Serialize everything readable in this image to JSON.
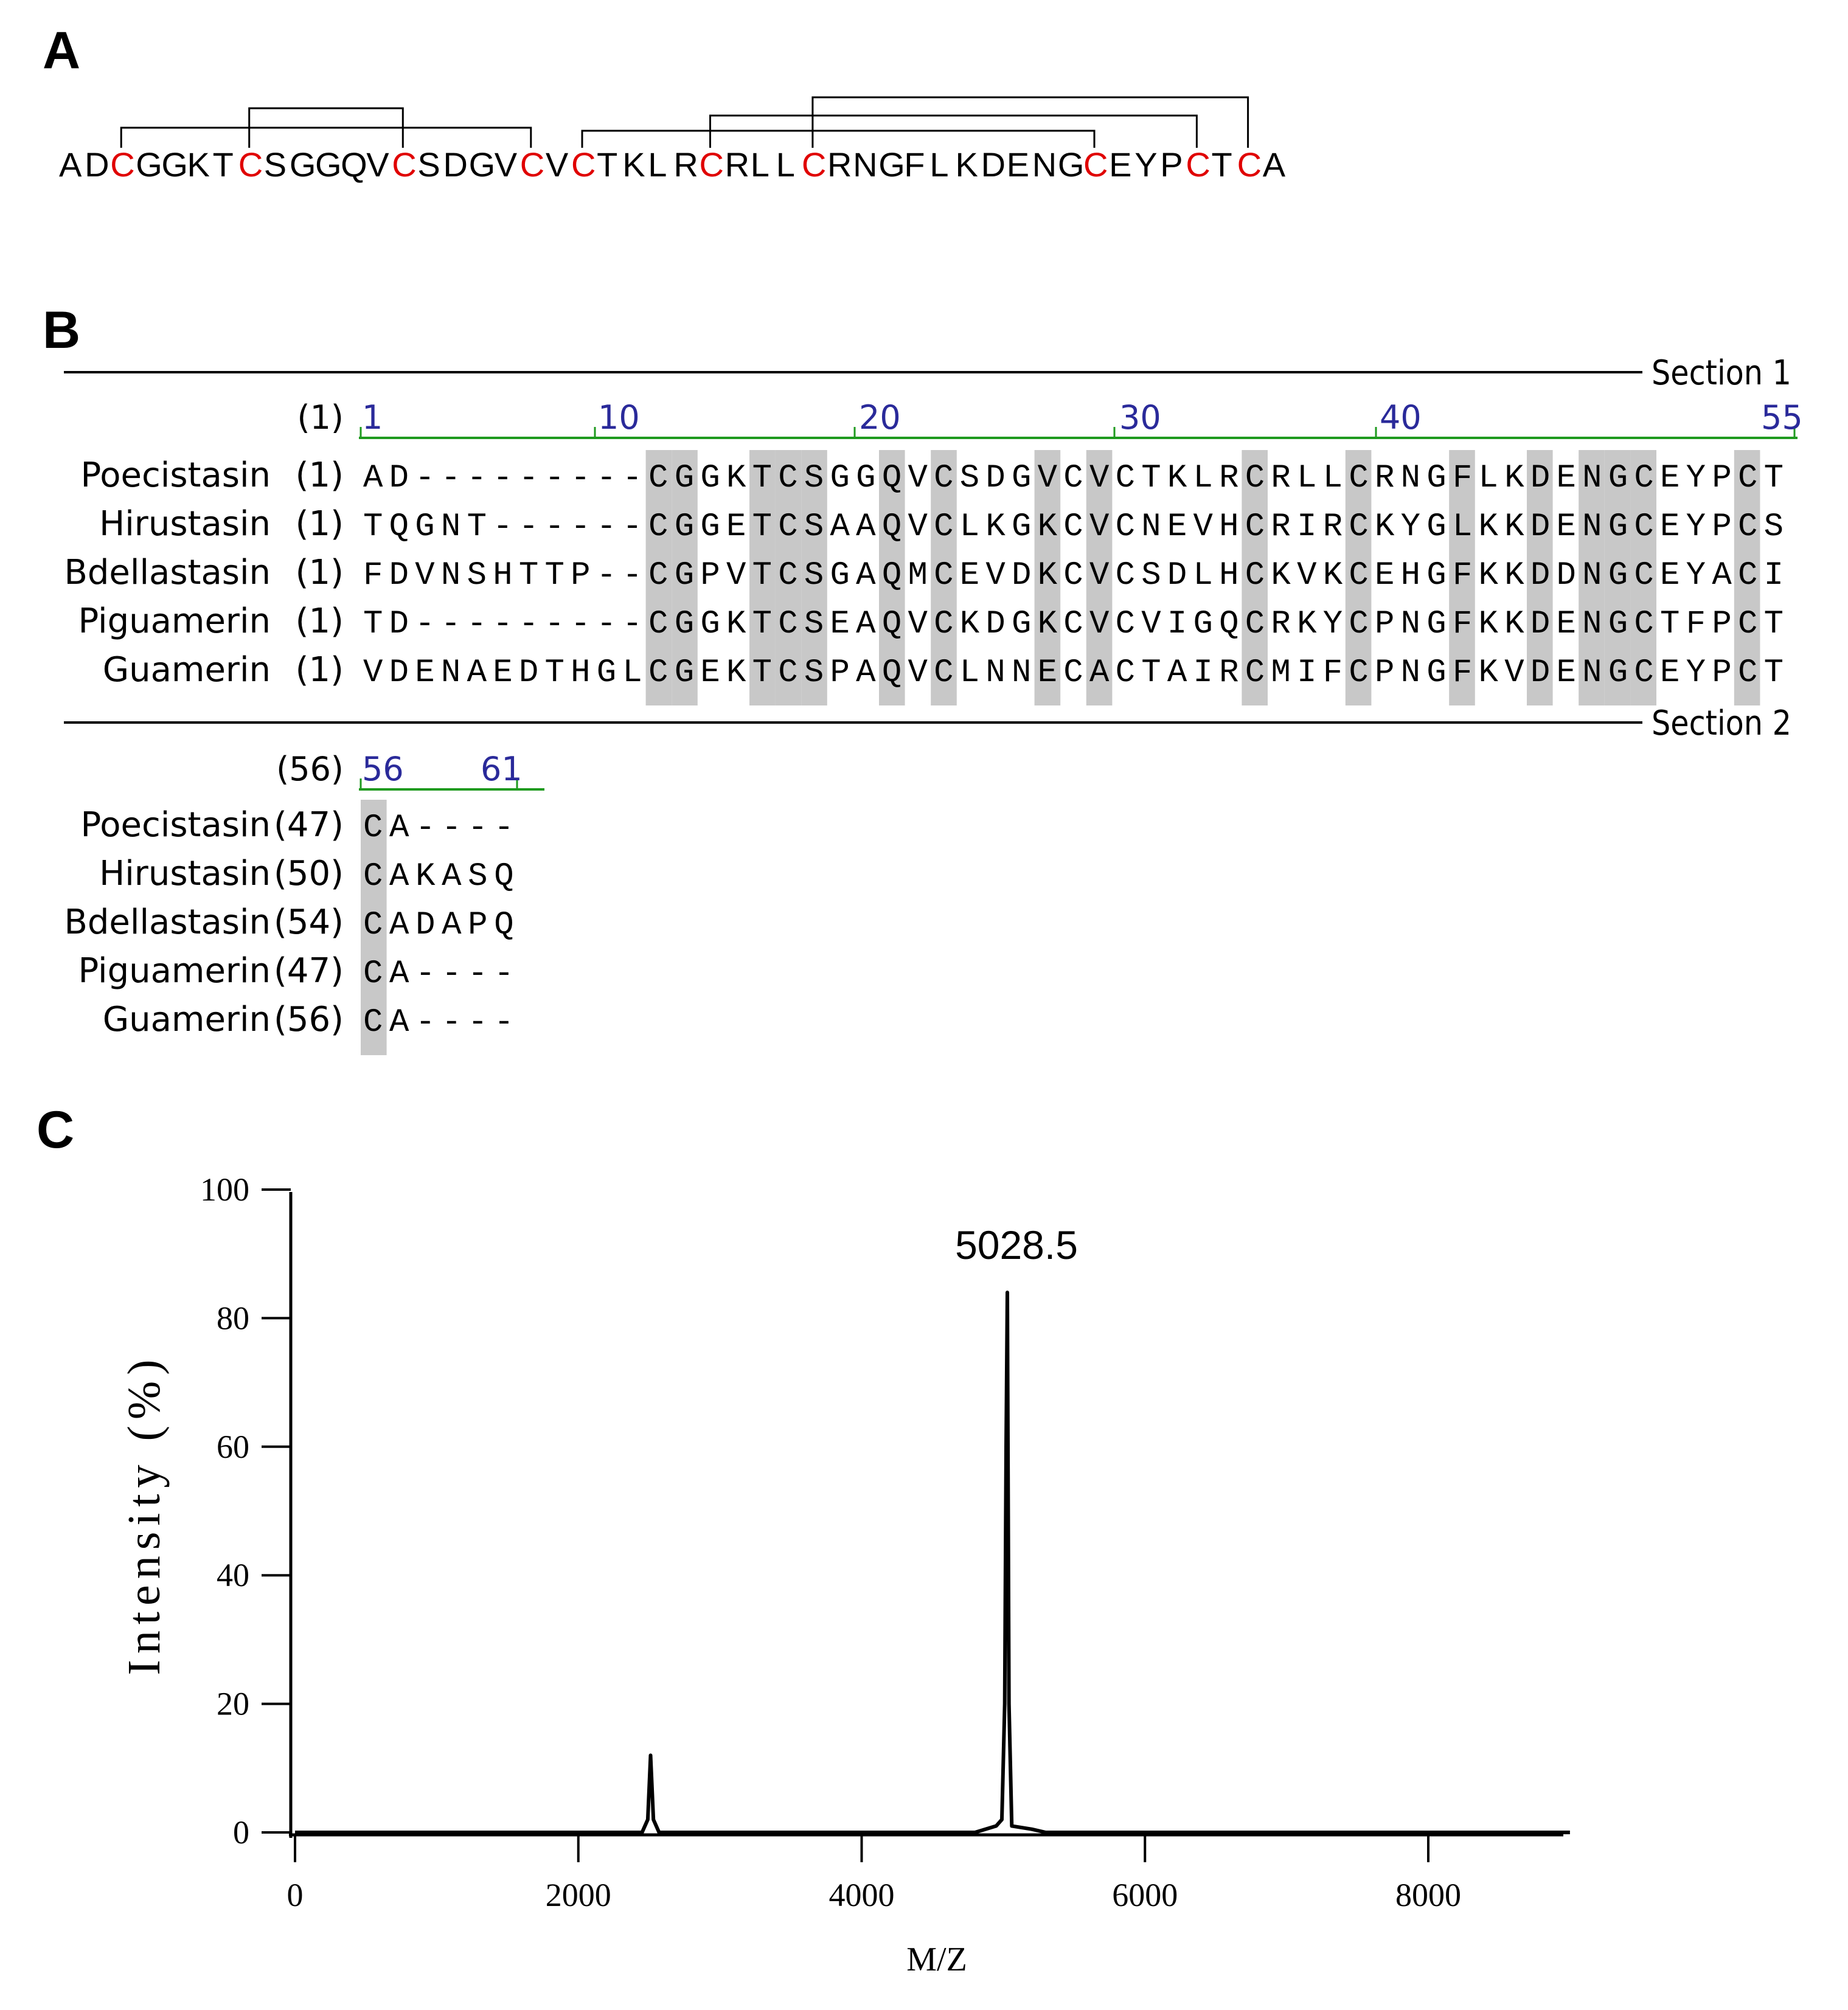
{
  "panels": {
    "A": "A",
    "B": "B",
    "C": "C"
  },
  "panel_a": {
    "sequence": "ADCGGKTCSGGQVCSDGVCVCTKLRCRLLCRNGFLKDENGCEYPCTCA",
    "highlight_residue": "C",
    "highlight_color": "#e00000",
    "disulfide_pairs": [
      [
        1,
        4
      ],
      [
        2,
        3
      ],
      [
        5,
        8
      ],
      [
        6,
        9
      ],
      [
        7,
        10
      ]
    ]
  },
  "panel_b": {
    "section1": {
      "label": "Section 1",
      "start_label": "(1)",
      "ruler": [
        "1",
        "10",
        "20",
        "30",
        "40",
        "55"
      ],
      "rows": [
        {
          "name": "Poecistasin",
          "pos": "(1)",
          "seq": "AD---------CGGKTCSGGQVCSDGVCVCTKLRCRLLCRNGFLKDENGCEYPCT"
        },
        {
          "name": "Hirustasin",
          "pos": "(1)",
          "seq": "TQGNT------CGGETCSAAQVCLKGKCVCNEVHCRIRCKYGLKKDENGCEYPCS"
        },
        {
          "name": "Bdellastasin",
          "pos": "(1)",
          "seq": "FDVNSHTTP--CGPVTCSGAQMCEVDKCVCSDLHCKVKCEHGFKKDDNGCEYACI"
        },
        {
          "name": "Piguamerin",
          "pos": "(1)",
          "seq": "TD---------CGGKTCSEAQVCKDGKCVCVIGQCRKYCPNGFKKDENGCTFPCT"
        },
        {
          "name": "Guamerin",
          "pos": "(1)",
          "seq": "VDENAEDTHGLCGEKTCSPAQVCLNNECACTAIRCMIFCPNGFKVDENGCEYPCT"
        }
      ],
      "shaded_columns": [
        12,
        13,
        16,
        17,
        18,
        21,
        23,
        27,
        29,
        35,
        39,
        43,
        46,
        48,
        49,
        50,
        54
      ]
    },
    "section2": {
      "label": "Section 2",
      "start_label": "(56)",
      "ruler": [
        "56",
        "61"
      ],
      "rows": [
        {
          "name": "Poecistasin",
          "pos": "(47)",
          "seq": "CA----"
        },
        {
          "name": "Hirustasin",
          "pos": "(50)",
          "seq": "CAKASQ"
        },
        {
          "name": "Bdellastasin",
          "pos": "(54)",
          "seq": "CADAPQ"
        },
        {
          "name": "Piguamerin",
          "pos": "(47)",
          "seq": "CA----"
        },
        {
          "name": "Guamerin",
          "pos": "(56)",
          "seq": "CA----"
        }
      ],
      "shaded_columns": [
        1
      ]
    },
    "shade_color": "#c8c8c8",
    "ruler_color": "#1f9a1f",
    "ruler_text_color": "#2a2a9a"
  },
  "chart_data": {
    "type": "line",
    "title": "",
    "xlabel": "M/Z",
    "ylabel": "Intensity (%)",
    "xlim": [
      0,
      9000
    ],
    "ylim": [
      0,
      100
    ],
    "xticks": [
      0,
      2000,
      4000,
      6000,
      8000
    ],
    "yticks": [
      0,
      20,
      40,
      60,
      80,
      100
    ],
    "series": [
      {
        "x": [
          0,
          2450,
          2490,
          2510,
          2530,
          2570,
          4800,
          4950,
          4990,
          5010,
          5020,
          5028.5,
          5040,
          5060,
          5200,
          5300,
          9000
        ],
        "y": [
          0,
          0,
          2,
          12,
          2,
          0,
          0,
          1,
          2,
          20,
          60,
          84,
          20,
          1,
          0.5,
          0,
          0
        ]
      }
    ],
    "annotations": [
      {
        "x": 5028.5,
        "y": 84,
        "text": "5028.5"
      }
    ],
    "line_color": "#000000"
  }
}
